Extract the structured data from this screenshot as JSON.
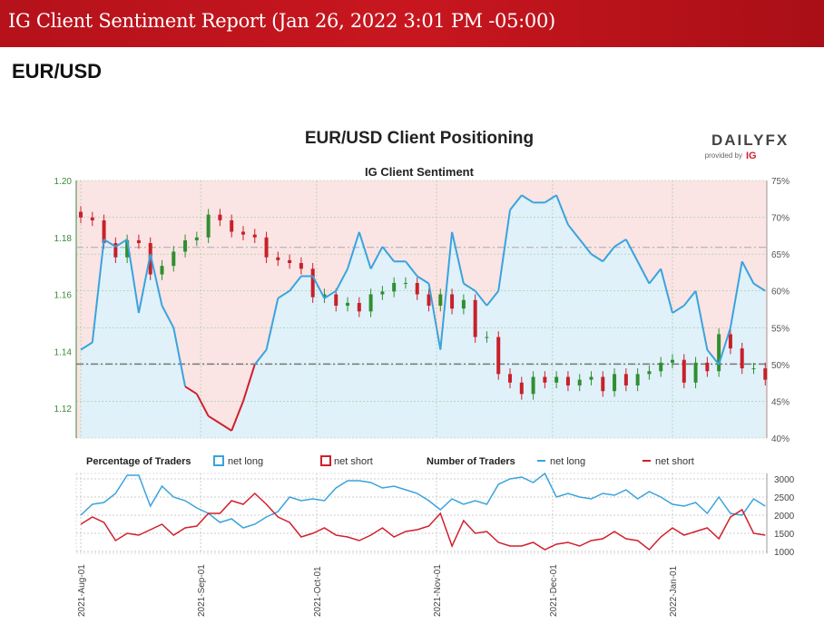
{
  "banner": {
    "title": "IG Client Sentiment Report (Jan 26, 2022 3:01 PM -05:00)"
  },
  "page": {
    "pair": "EUR/USD"
  },
  "brand": {
    "logo": "DAILYFX",
    "provided_by": "provided by",
    "ig": "IG"
  },
  "colors": {
    "long": "#3aa3dd",
    "short": "#d11f2c",
    "long_fill": "#e0f1fa",
    "short_fill": "#fbe4e4",
    "up": "#2f8f2f",
    "down": "#c8202a"
  },
  "chart_data": [
    {
      "type": "line",
      "title": "EUR/USD Client Positioning",
      "subtitle": "IG Client Sentiment",
      "x_start": "2021-08-01",
      "x_step_days": 3,
      "xticks": [
        "2021-Aug-01",
        "2021-Sep-01",
        "2021-Oct-01",
        "2021-Nov-01",
        "2021-Dec-01",
        "2022-Jan-01"
      ],
      "price_ticks": [
        "1.12",
        "1.14",
        "1.16",
        "1.18",
        "1.20"
      ],
      "price_range": [
        1.1095,
        1.2
      ],
      "pct_ticks": [
        "40%",
        "45%",
        "50%",
        "55%",
        "60%",
        "65%",
        "70%",
        "75%"
      ],
      "pct_range": [
        40,
        75
      ],
      "ref_levels": [
        1.1765,
        1.1355
      ],
      "price_close": [
        1.187,
        1.186,
        1.178,
        1.173,
        1.179,
        1.178,
        1.167,
        1.17,
        1.175,
        1.179,
        1.18,
        1.188,
        1.186,
        1.182,
        1.181,
        1.18,
        1.173,
        1.172,
        1.171,
        1.169,
        1.159,
        1.16,
        1.156,
        1.157,
        1.154,
        1.16,
        1.161,
        1.164,
        1.164,
        1.16,
        1.156,
        1.16,
        1.155,
        1.158,
        1.145,
        1.145,
        1.132,
        1.129,
        1.125,
        1.131,
        1.129,
        1.131,
        1.128,
        1.13,
        1.131,
        1.126,
        1.132,
        1.128,
        1.132,
        1.133,
        1.136,
        1.137,
        1.129,
        1.136,
        1.133,
        1.146,
        1.141,
        1.134,
        1.134,
        1.13
      ],
      "net_long_pct": [
        52,
        53,
        67,
        66,
        67,
        57,
        65,
        58,
        55,
        47,
        46,
        43,
        42,
        41,
        45,
        50,
        52,
        59,
        60,
        62,
        62,
        59,
        60,
        63,
        68,
        63,
        66,
        64,
        64,
        62,
        61,
        52,
        68,
        61,
        60,
        58,
        60,
        71,
        73,
        72,
        72,
        73,
        69,
        67,
        65,
        64,
        66,
        67,
        64,
        61,
        63,
        57,
        58,
        60,
        52,
        50,
        55,
        64,
        61,
        60
      ]
    },
    {
      "type": "line",
      "legend": {
        "pct_title": "Percentage of Traders",
        "num_title": "Number of Traders",
        "net_long": "net long",
        "net_short": "net short"
      },
      "y_ticks": [
        "1000",
        "1500",
        "2000",
        "2500",
        "3000"
      ],
      "y_range": [
        950,
        3150
      ],
      "net_long_count": [
        2000,
        2300,
        2350,
        2600,
        3100,
        3100,
        2250,
        2800,
        2500,
        2400,
        2200,
        2050,
        1800,
        1900,
        1650,
        1750,
        1950,
        2100,
        2500,
        2400,
        2450,
        2400,
        2750,
        2950,
        2950,
        2900,
        2750,
        2800,
        2700,
        2600,
        2400,
        2150,
        2450,
        2300,
        2400,
        2300,
        2850,
        3000,
        3050,
        2900,
        3150,
        2500,
        2600,
        2500,
        2450,
        2600,
        2550,
        2700,
        2450,
        2650,
        2500,
        2300,
        2250,
        2350,
        2050,
        2500,
        2050,
        2000,
        2450,
        2250
      ],
      "net_short_count": [
        1750,
        1950,
        1800,
        1300,
        1500,
        1450,
        1600,
        1750,
        1450,
        1650,
        1700,
        2050,
        2050,
        2400,
        2300,
        2600,
        2300,
        1950,
        1800,
        1400,
        1500,
        1650,
        1450,
        1400,
        1300,
        1450,
        1650,
        1400,
        1550,
        1600,
        1700,
        2050,
        1150,
        1850,
        1500,
        1550,
        1250,
        1150,
        1150,
        1250,
        1050,
        1200,
        1250,
        1150,
        1300,
        1350,
        1550,
        1350,
        1300,
        1050,
        1400,
        1650,
        1450,
        1550,
        1650,
        1350,
        1950,
        2150,
        1500,
        1450
      ]
    }
  ]
}
